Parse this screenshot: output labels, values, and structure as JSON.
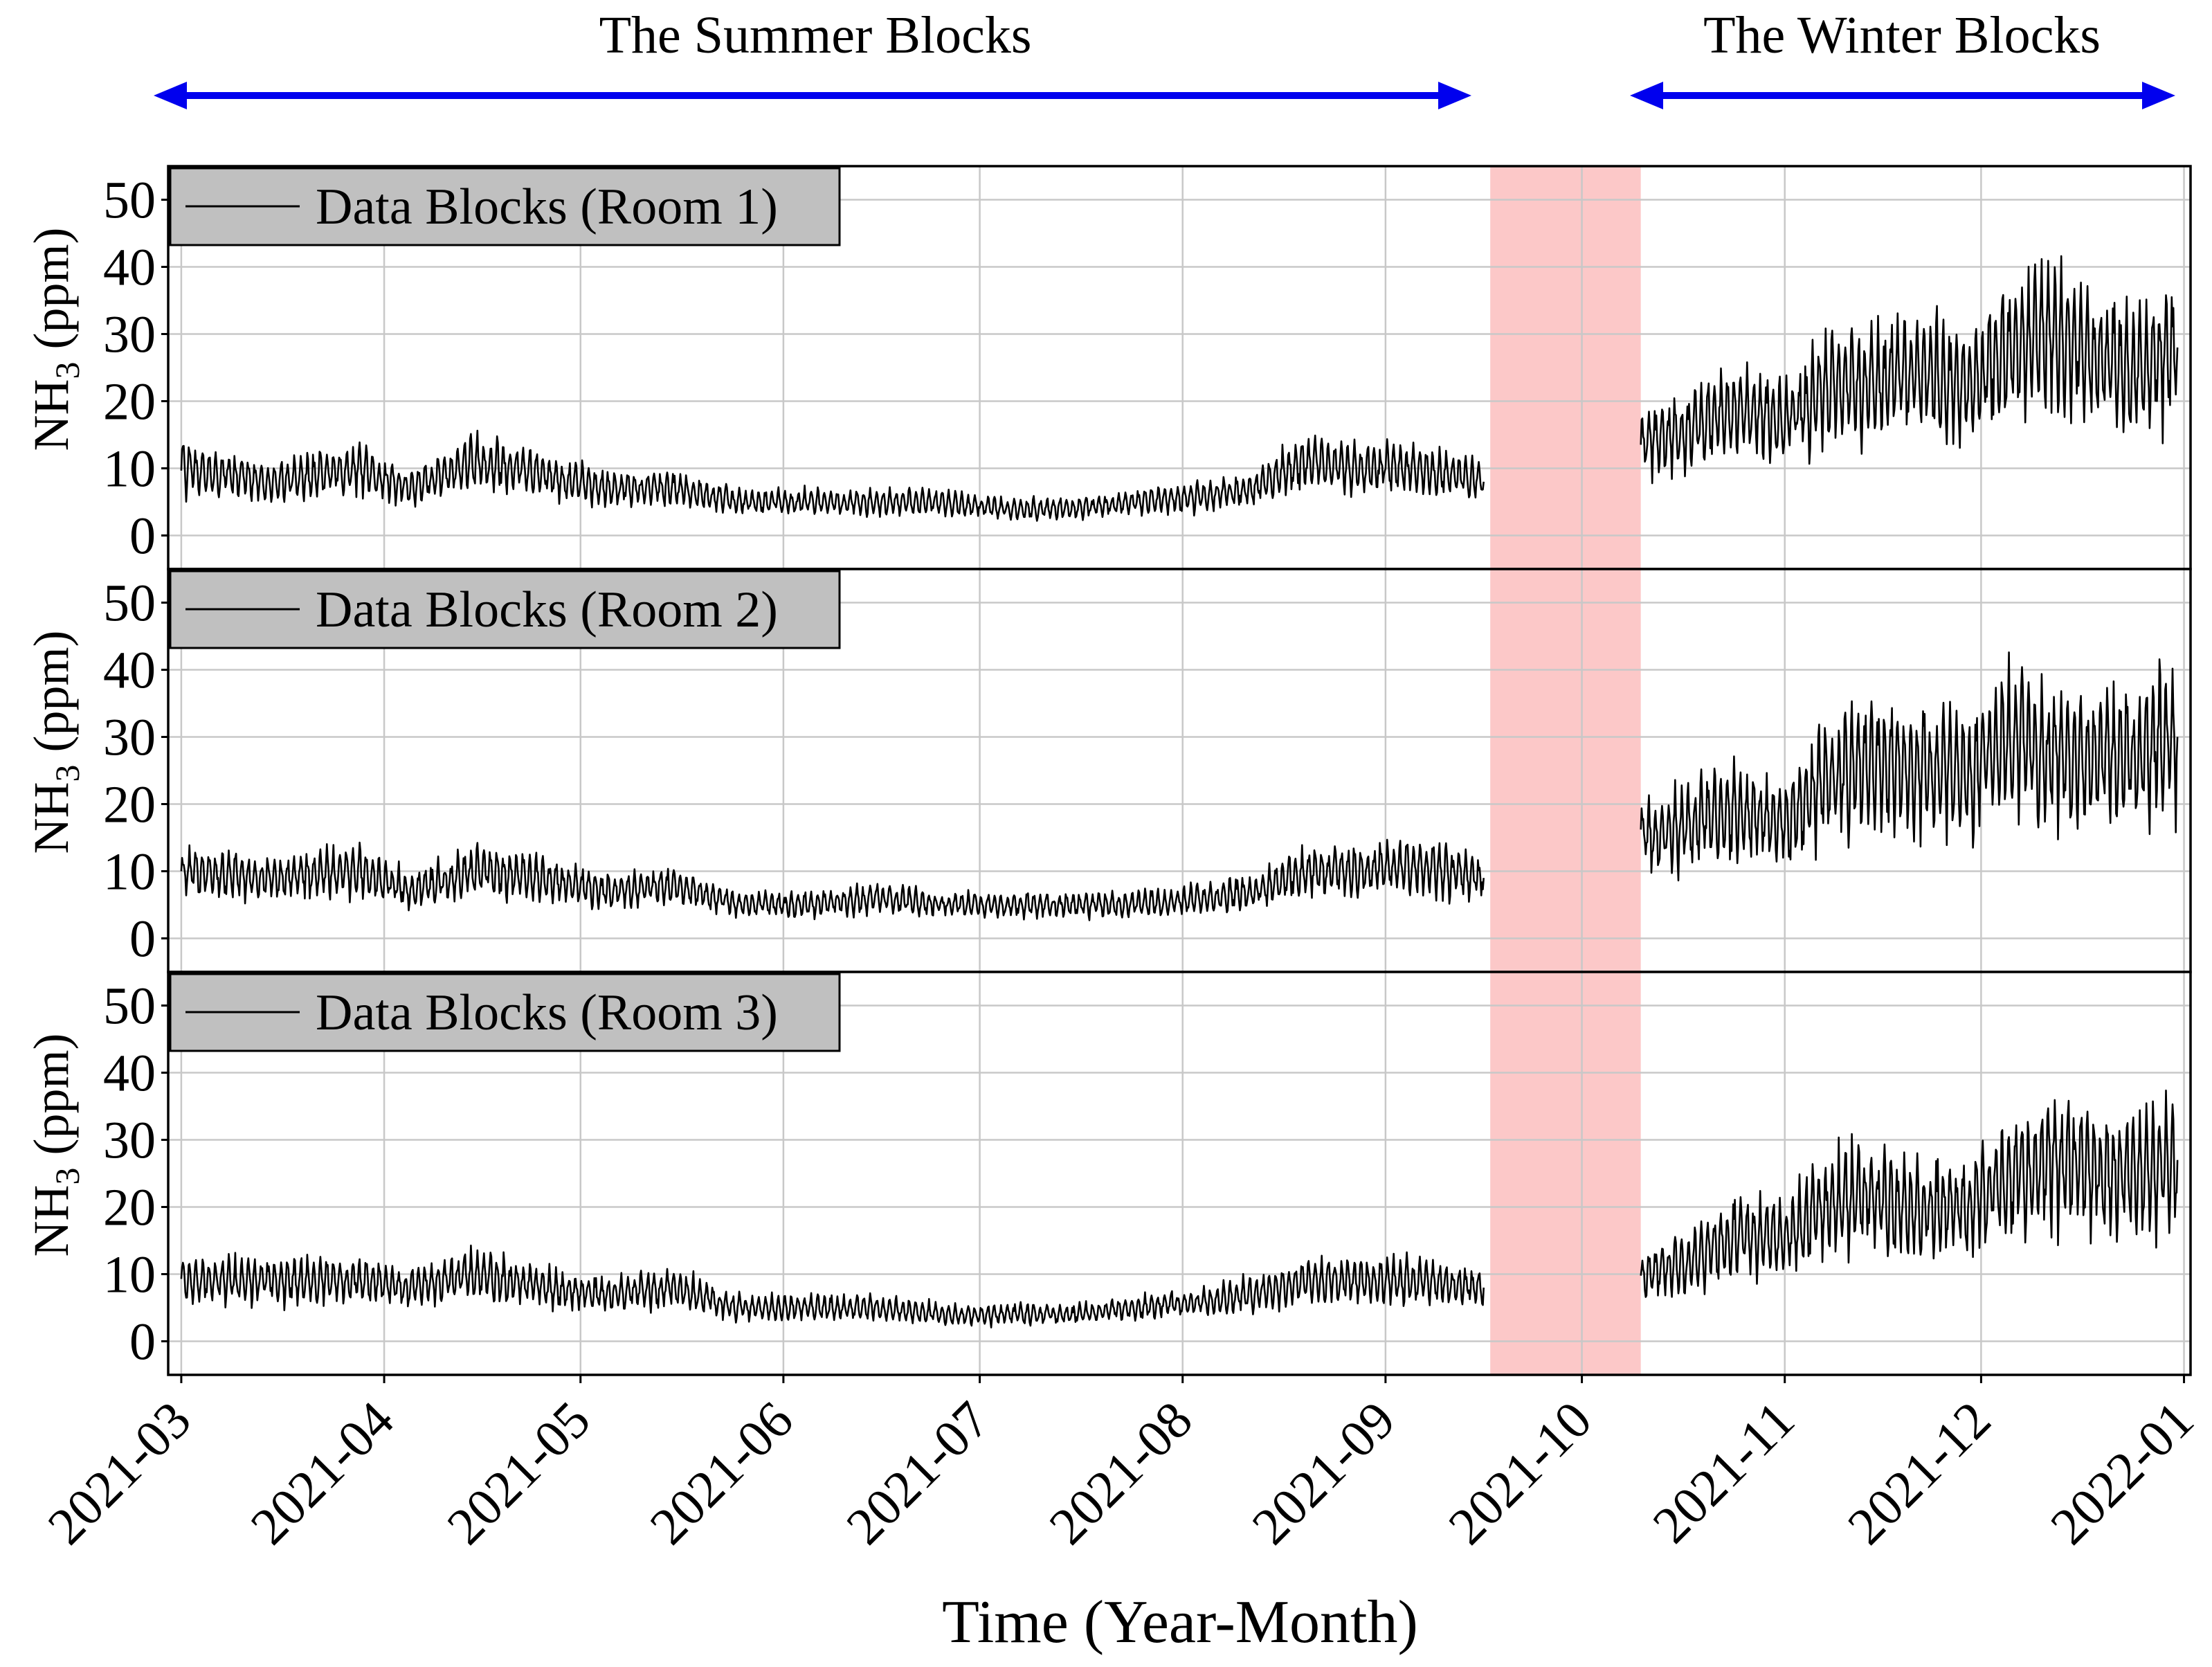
{
  "figure": {
    "summer_label": "The Summer Blocks",
    "winter_label": "The Winter Blocks",
    "xlabel": "Time (Year-Month)",
    "ylabel_prefix": "NH",
    "ylabel_sub": "3",
    "ylabel_suffix": " (ppm)",
    "arrow_color": "#0000ee",
    "gap_color": "#fcc8c8",
    "line_color": "#000000",
    "legend_bg": "#c0c0c0"
  },
  "chart_data": {
    "type": "line",
    "x_axis": {
      "type": "date",
      "range": [
        "2021-02-27",
        "2022-01-02"
      ],
      "ticks": [
        "2021-03",
        "2021-04",
        "2021-05",
        "2021-06",
        "2021-07",
        "2021-08",
        "2021-09",
        "2021-10",
        "2021-11",
        "2021-12",
        "2022-01"
      ]
    },
    "y_axis": {
      "range": [
        -5,
        55
      ],
      "ticks": [
        0,
        10,
        20,
        30,
        40,
        50
      ]
    },
    "grid": true,
    "legend_placement": "top-left",
    "gap": {
      "start": "2021-09-17",
      "end": "2021-10-10"
    },
    "summer_range": [
      "2021-03-01",
      "2021-09-17"
    ],
    "winter_range": [
      "2021-10-10",
      "2021-12-31"
    ],
    "series": [
      {
        "name": "Data Blocks (Room 1)",
        "values": [
          [
            "2021-03-01",
            10
          ],
          [
            "2021-03-15",
            8
          ],
          [
            "2021-03-28",
            10
          ],
          [
            "2021-04-05",
            7
          ],
          [
            "2021-04-15",
            11
          ],
          [
            "2021-04-25",
            9
          ],
          [
            "2021-05-05",
            7
          ],
          [
            "2021-05-15",
            7
          ],
          [
            "2021-05-25",
            5
          ],
          [
            "2021-06-05",
            5
          ],
          [
            "2021-06-15",
            5
          ],
          [
            "2021-06-25",
            5
          ],
          [
            "2021-07-05",
            4
          ],
          [
            "2021-07-15",
            4
          ],
          [
            "2021-07-25",
            5
          ],
          [
            "2021-08-05",
            6
          ],
          [
            "2021-08-12",
            7
          ],
          [
            "2021-08-20",
            11
          ],
          [
            "2021-08-28",
            10
          ],
          [
            "2021-09-05",
            10
          ],
          [
            "2021-09-16",
            8
          ],
          [
            "2021-10-10",
            14
          ],
          [
            "2021-10-18",
            16
          ],
          [
            "2021-10-25",
            19
          ],
          [
            "2021-11-01",
            17
          ],
          [
            "2021-11-08",
            22
          ],
          [
            "2021-11-15",
            23
          ],
          [
            "2021-11-22",
            24
          ],
          [
            "2021-11-29",
            22
          ],
          [
            "2021-12-05",
            28
          ],
          [
            "2021-12-12",
            30
          ],
          [
            "2021-12-18",
            27
          ],
          [
            "2021-12-24",
            24
          ],
          [
            "2021-12-31",
            28
          ]
        ]
      },
      {
        "name": "Data Blocks (Room 2)",
        "values": [
          [
            "2021-03-01",
            10
          ],
          [
            "2021-03-15",
            9
          ],
          [
            "2021-03-28",
            10
          ],
          [
            "2021-04-05",
            7
          ],
          [
            "2021-04-15",
            10
          ],
          [
            "2021-04-25",
            9
          ],
          [
            "2021-05-05",
            7
          ],
          [
            "2021-05-15",
            8
          ],
          [
            "2021-05-25",
            5
          ],
          [
            "2021-06-05",
            5
          ],
          [
            "2021-06-15",
            6
          ],
          [
            "2021-06-25",
            5
          ],
          [
            "2021-07-05",
            5
          ],
          [
            "2021-07-15",
            5
          ],
          [
            "2021-07-25",
            5
          ],
          [
            "2021-08-05",
            6
          ],
          [
            "2021-08-12",
            7
          ],
          [
            "2021-08-20",
            10
          ],
          [
            "2021-08-28",
            10
          ],
          [
            "2021-09-05",
            11
          ],
          [
            "2021-09-16",
            9
          ],
          [
            "2021-10-10",
            15
          ],
          [
            "2021-10-18",
            17
          ],
          [
            "2021-10-25",
            19
          ],
          [
            "2021-11-01",
            17
          ],
          [
            "2021-11-08",
            24
          ],
          [
            "2021-11-15",
            26
          ],
          [
            "2021-11-22",
            25
          ],
          [
            "2021-11-29",
            24
          ],
          [
            "2021-12-05",
            29
          ],
          [
            "2021-12-12",
            28
          ],
          [
            "2021-12-18",
            27
          ],
          [
            "2021-12-24",
            27
          ],
          [
            "2021-12-31",
            30
          ]
        ]
      },
      {
        "name": "Data Blocks (Room 3)",
        "values": [
          [
            "2021-03-01",
            9
          ],
          [
            "2021-03-15",
            9
          ],
          [
            "2021-03-28",
            9
          ],
          [
            "2021-04-05",
            8
          ],
          [
            "2021-04-15",
            10
          ],
          [
            "2021-04-25",
            8
          ],
          [
            "2021-05-05",
            7
          ],
          [
            "2021-05-15",
            8
          ],
          [
            "2021-05-25",
            5
          ],
          [
            "2021-06-05",
            5
          ],
          [
            "2021-06-15",
            5
          ],
          [
            "2021-06-25",
            4
          ],
          [
            "2021-07-05",
            4
          ],
          [
            "2021-07-15",
            4
          ],
          [
            "2021-07-25",
            5
          ],
          [
            "2021-08-05",
            6
          ],
          [
            "2021-08-12",
            7
          ],
          [
            "2021-08-20",
            9
          ],
          [
            "2021-08-28",
            9
          ],
          [
            "2021-09-05",
            9
          ],
          [
            "2021-09-16",
            8
          ],
          [
            "2021-10-10",
            10
          ],
          [
            "2021-10-18",
            12
          ],
          [
            "2021-10-25",
            16
          ],
          [
            "2021-11-01",
            15
          ],
          [
            "2021-11-08",
            21
          ],
          [
            "2021-11-15",
            21
          ],
          [
            "2021-11-22",
            20
          ],
          [
            "2021-11-29",
            20
          ],
          [
            "2021-12-05",
            24
          ],
          [
            "2021-12-12",
            27
          ],
          [
            "2021-12-18",
            25
          ],
          [
            "2021-12-24",
            25
          ],
          [
            "2021-12-31",
            27
          ]
        ]
      }
    ]
  }
}
